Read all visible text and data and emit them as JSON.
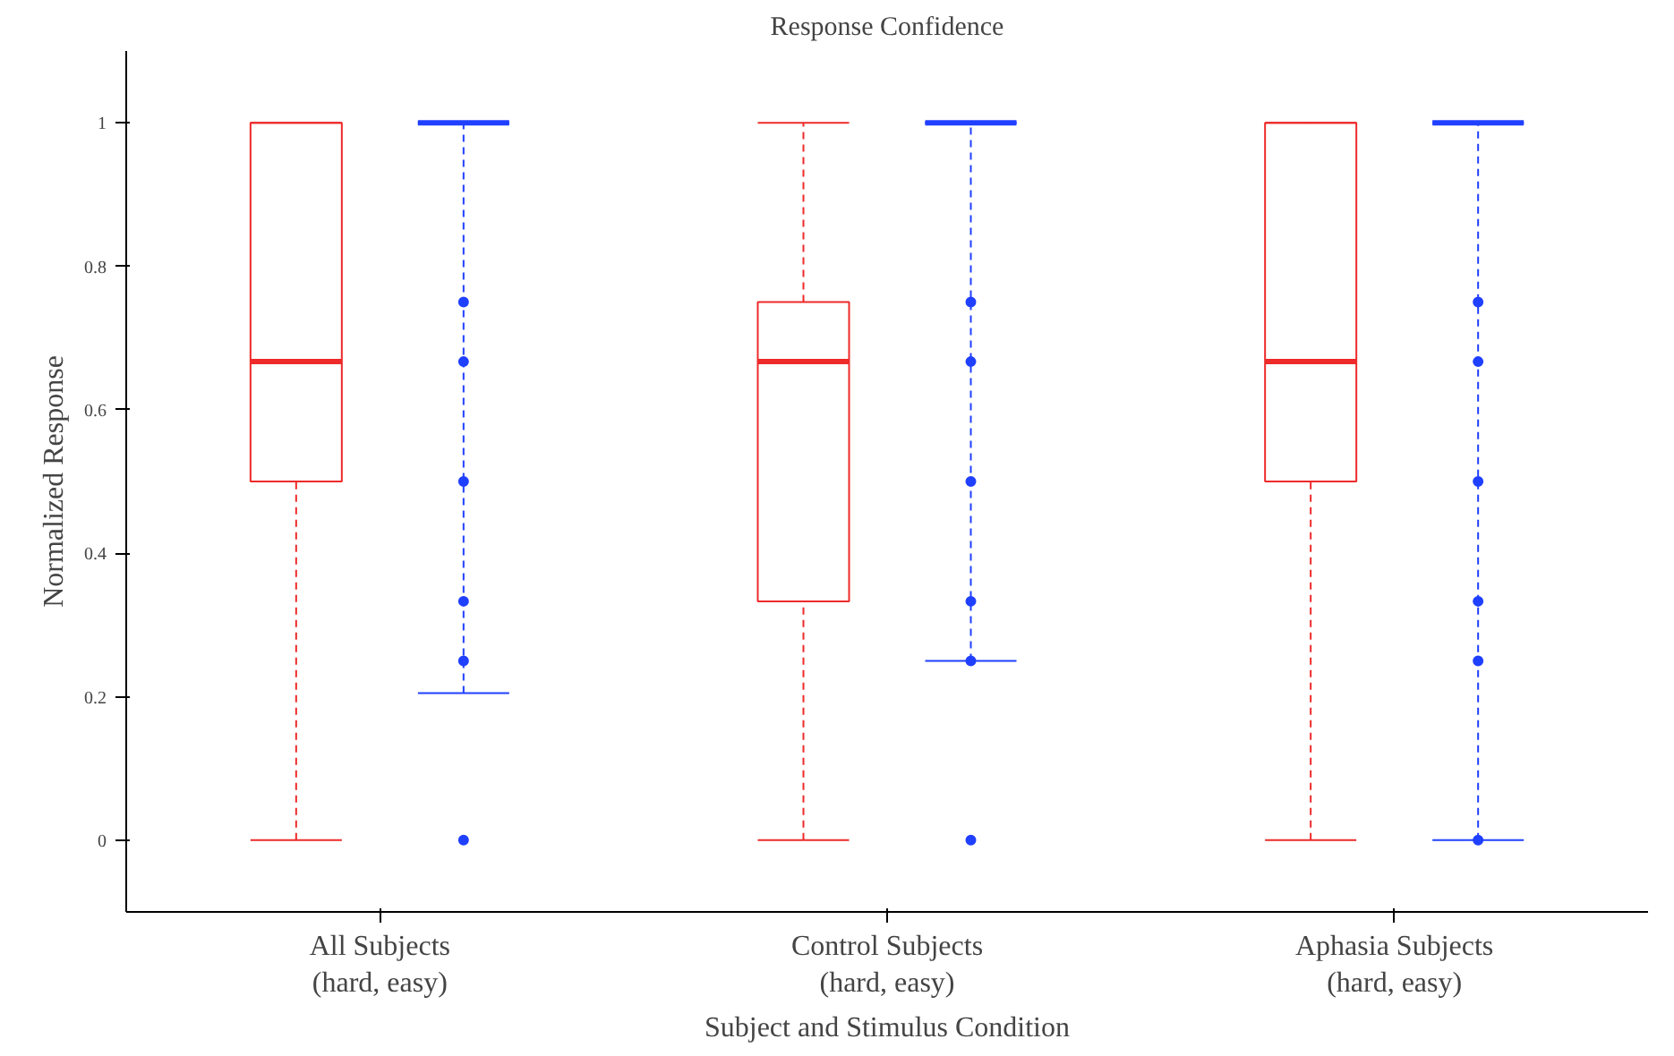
{
  "chart_data": {
    "type": "box",
    "title": "Response Confidence",
    "xlabel": "Subject and Stimulus Condition",
    "ylabel": "Normalized Response",
    "categories": [
      "All Subjects\n(hard, easy)",
      "Control Subjects\n(hard, easy)",
      "Aphasia Subjects\n(hard, easy)"
    ],
    "ylim": [
      -0.1,
      1.1
    ],
    "yticks": [
      0,
      0.2,
      0.4,
      0.6,
      0.8,
      1
    ],
    "grid": false,
    "series": [
      {
        "color": "#ee2a2a",
        "line_style": "dashed",
        "boxes": [
          {
            "low": 0,
            "q1": 0.5,
            "median": 0.667,
            "q3": 1,
            "high": 1
          },
          {
            "low": 0,
            "q1": 0.333,
            "median": 0.667,
            "q3": 0.75,
            "high": 1
          },
          {
            "low": 0,
            "q1": 0.5,
            "median": 0.667,
            "q3": 1,
            "high": 1
          }
        ]
      },
      {
        "color": "#2040ff",
        "line_style": "dashed",
        "boxes": [
          {
            "low": 0.205,
            "q1": 1,
            "median": 1,
            "q3": 1,
            "high": 1,
            "outliers": [
              0.75,
              0.667,
              0.5,
              0.333,
              0.25,
              0
            ]
          },
          {
            "low": 0.25,
            "q1": 1,
            "median": 1,
            "q3": 1,
            "high": 1,
            "outliers": [
              0.75,
              0.667,
              0.5,
              0.333,
              0.25,
              0
            ]
          },
          {
            "low": 0,
            "q1": 1,
            "median": 1,
            "q3": 1,
            "high": 1,
            "outliers": [
              0.75,
              0.667,
              0.5,
              0.333,
              0.25,
              0
            ]
          }
        ]
      }
    ]
  }
}
